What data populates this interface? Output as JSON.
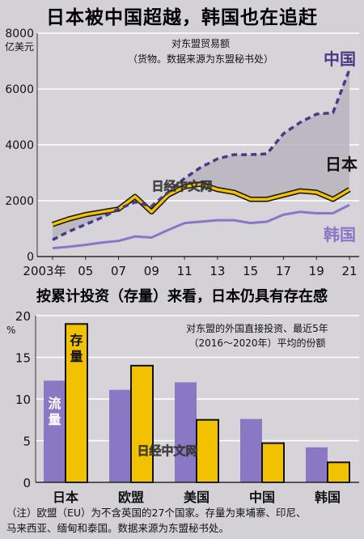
{
  "titles": {
    "top": "日本被中国超越，韩国也在追赶",
    "bottom": "按累计投资（存量）来看，日本仍具有存在感"
  },
  "watermark": "日经中文网",
  "note_lines": [
    "（注）欧盟（EU）为不含英国的27个国家。存量为柬埔寨、印尼、",
    "马来西亚、缅甸和泰国。数据来源为东盟秘书处。"
  ],
  "colors": {
    "china": "#4a3a85",
    "japan": "#f2c200",
    "korea": "#8b76c6",
    "flow_bar": "#8b78c4",
    "stock_bar": "#f2c200",
    "shade": "#b7b4bd"
  },
  "chart_data": [
    {
      "type": "line",
      "title": "对东盟贸易额",
      "subtitle": "（货物。数据来源为东盟秘书处）",
      "ylabel": "亿美元",
      "ylim": [
        0,
        8000
      ],
      "yticks": [
        0,
        2000,
        4000,
        6000,
        8000
      ],
      "ytick_labels": [
        "0",
        "2000",
        "4000",
        "6000",
        "8000"
      ],
      "x": [
        2003,
        2004,
        2005,
        2006,
        2007,
        2008,
        2009,
        2010,
        2011,
        2012,
        2013,
        2014,
        2015,
        2016,
        2017,
        2018,
        2019,
        2020,
        2021
      ],
      "xtick_values": [
        2003,
        2005,
        2007,
        2009,
        2011,
        2013,
        2015,
        2017,
        2019,
        2021
      ],
      "xtick_labels": [
        "2003年",
        "05",
        "07",
        "09",
        "11",
        "13",
        "15",
        "17",
        "19",
        "21"
      ],
      "series": [
        {
          "name": "中国",
          "values": [
            600,
            900,
            1150,
            1400,
            1700,
            1950,
            1800,
            2300,
            2800,
            3200,
            3500,
            3650,
            3650,
            3680,
            4400,
            4800,
            5100,
            5150,
            6700
          ]
        },
        {
          "name": "日本",
          "values": [
            1150,
            1350,
            1500,
            1600,
            1700,
            2150,
            1600,
            2200,
            2500,
            2600,
            2400,
            2300,
            2050,
            2050,
            2200,
            2350,
            2300,
            2050,
            2400
          ]
        },
        {
          "name": "韩国",
          "values": [
            300,
            350,
            420,
            500,
            560,
            720,
            680,
            950,
            1200,
            1250,
            1300,
            1300,
            1200,
            1250,
            1500,
            1600,
            1550,
            1550,
            1850
          ]
        }
      ]
    },
    {
      "type": "bar",
      "title": "对东盟的外国直接投资、最近5年",
      "subtitle": "（2016～2020年）平均的份额",
      "ylabel": "%",
      "ylim": [
        0,
        20
      ],
      "yticks": [
        0,
        5,
        10,
        15,
        20
      ],
      "ytick_labels": [
        "0",
        "5",
        "10",
        "15",
        "20"
      ],
      "categories": [
        "日本",
        "欧盟",
        "美国",
        "中国",
        "韩国"
      ],
      "series": [
        {
          "name": "流量",
          "values": [
            12.2,
            11.1,
            12.0,
            7.6,
            4.2
          ]
        },
        {
          "name": "存量",
          "values": [
            19.0,
            14.0,
            7.5,
            4.7,
            2.4
          ]
        }
      ]
    }
  ]
}
